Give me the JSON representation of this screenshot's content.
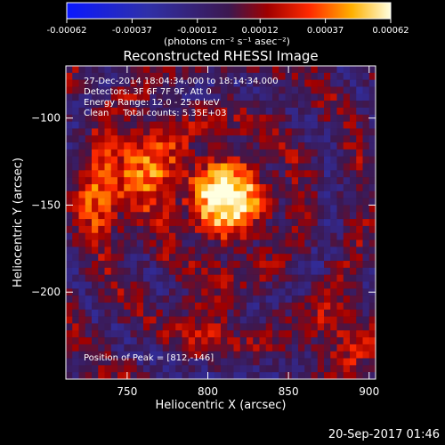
{
  "chart_data": {
    "type": "heatmap",
    "colorbar": {
      "ticks": [
        "-0.00062",
        "-0.00037",
        "-0.00012",
        "0.00012",
        "0.00037",
        "0.00062"
      ],
      "unit_label": "(photons cm⁻² s⁻¹ asec⁻²)",
      "range": [
        -0.00062,
        0.00062
      ]
    },
    "title": "Reconstructed RHESSI Image",
    "info_lines": [
      "27-Dec-2014 18:04:34.000 to 18:14:34.000",
      "Detectors: 3F 6F 7F 9F, Att 0",
      "Energy Range: 12.0 - 25.0 keV",
      "Clean     Total counts: 5.35E+03"
    ],
    "peak_label": "Position of Peak = [812,-146]",
    "peak": [
      812,
      -146
    ],
    "xlabel": "Heliocentric X (arcsec)",
    "ylabel": "Heliocentric Y (arcsec)",
    "xlim": [
      712,
      904
    ],
    "ylim": [
      -250,
      -70
    ],
    "xticks": [
      750,
      800,
      850,
      900
    ],
    "yticks": [
      -100,
      -150,
      -200
    ],
    "sources": [
      {
        "x": 812,
        "y": -146,
        "amp": 1.0,
        "sigma": 16
      },
      {
        "x": 758,
        "y": -128,
        "amp": 0.55,
        "sigma": 18
      },
      {
        "x": 730,
        "y": -150,
        "amp": 0.35,
        "sigma": 14
      },
      {
        "x": 800,
        "y": -212,
        "amp": 0.3,
        "sigma": 12
      },
      {
        "x": 880,
        "y": -225,
        "amp": 0.3,
        "sigma": 14
      }
    ]
  },
  "footer_timestamp": "20-Sep-2017 01:46"
}
